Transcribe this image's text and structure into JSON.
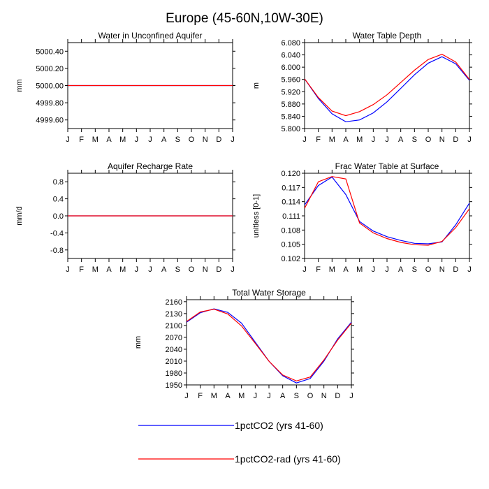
{
  "figure": {
    "title": "Europe (45-60N,10W-30E)"
  },
  "colors": {
    "series_1": "#0000ff",
    "series_2": "#ff0000",
    "axes": "#000000"
  },
  "legend": {
    "items": [
      {
        "label": "1pctCO2 (yrs 41-60)",
        "color": "#0000ff"
      },
      {
        "label": "1pctCO2-rad (yrs 41-60)",
        "color": "#ff0000"
      }
    ]
  },
  "chart_data": [
    {
      "type": "line",
      "title": "Water in Unconfined Aquifer",
      "ylabel": "mm",
      "x": [
        "J",
        "F",
        "M",
        "A",
        "M",
        "J",
        "J",
        "A",
        "S",
        "O",
        "N",
        "D",
        "J"
      ],
      "ylim": [
        4999.5,
        5000.5
      ],
      "yticks": [
        "5000.40",
        "5000.20",
        "5000.00",
        "4999.80",
        "4999.60"
      ],
      "ytick_values": [
        5000.4,
        5000.2,
        5000.0,
        4999.8,
        4999.6
      ],
      "series": [
        {
          "name": "1pctCO2 (yrs 41-60)",
          "values": [
            5000,
            5000,
            5000,
            5000,
            5000,
            5000,
            5000,
            5000,
            5000,
            5000,
            5000,
            5000,
            5000
          ]
        },
        {
          "name": "1pctCO2-rad (yrs 41-60)",
          "values": [
            5000,
            5000,
            5000,
            5000,
            5000,
            5000,
            5000,
            5000,
            5000,
            5000,
            5000,
            5000,
            5000
          ]
        }
      ]
    },
    {
      "type": "line",
      "title": "Water Table Depth",
      "ylabel": "m",
      "x": [
        "J",
        "F",
        "M",
        "A",
        "M",
        "J",
        "J",
        "A",
        "S",
        "O",
        "N",
        "D",
        "J"
      ],
      "ylim": [
        5.8,
        6.08
      ],
      "yticks": [
        "6.080",
        "6.040",
        "6.000",
        "5.960",
        "5.920",
        "5.880",
        "5.840",
        "5.800"
      ],
      "ytick_values": [
        6.08,
        6.04,
        6.0,
        5.96,
        5.92,
        5.88,
        5.84,
        5.8
      ],
      "series": [
        {
          "name": "1pctCO2 (yrs 41-60)",
          "values": [
            5.962,
            5.898,
            5.848,
            5.822,
            5.828,
            5.851,
            5.887,
            5.931,
            5.975,
            6.013,
            6.034,
            6.011,
            5.957
          ]
        },
        {
          "name": "1pctCO2-rad (yrs 41-60)",
          "values": [
            5.962,
            5.901,
            5.857,
            5.842,
            5.855,
            5.878,
            5.91,
            5.95,
            5.99,
            6.025,
            6.042,
            6.017,
            5.96
          ]
        }
      ]
    },
    {
      "type": "line",
      "title": "Aquifer Recharge Rate",
      "ylabel": "mm/d",
      "x": [
        "J",
        "F",
        "M",
        "A",
        "M",
        "J",
        "J",
        "A",
        "S",
        "O",
        "N",
        "D",
        "J"
      ],
      "ylim": [
        -1.0,
        1.0
      ],
      "yticks": [
        "0.8",
        "0.4",
        "0.0",
        "-0.4",
        "-0.8"
      ],
      "ytick_values": [
        0.8,
        0.4,
        0.0,
        -0.4,
        -0.8
      ],
      "series": [
        {
          "name": "1pctCO2 (yrs 41-60)",
          "values": [
            0,
            0,
            0,
            0,
            0,
            0,
            0,
            0,
            0,
            0,
            0,
            0,
            0
          ]
        },
        {
          "name": "1pctCO2-rad (yrs 41-60)",
          "values": [
            0,
            0,
            0,
            0,
            0,
            0,
            0,
            0,
            0,
            0,
            0,
            0,
            0
          ]
        }
      ]
    },
    {
      "type": "line",
      "title": "Frac Water Table at Surface",
      "ylabel": "unitless [0-1]",
      "x": [
        "J",
        "F",
        "M",
        "A",
        "M",
        "J",
        "J",
        "A",
        "S",
        "O",
        "N",
        "D",
        "J"
      ],
      "ylim": [
        0.102,
        0.12
      ],
      "yticks": [
        "0.120",
        "0.117",
        "0.114",
        "0.111",
        "0.108",
        "0.105",
        "0.102"
      ],
      "ytick_values": [
        0.12,
        0.117,
        0.114,
        0.111,
        0.108,
        0.105,
        0.102
      ],
      "series": [
        {
          "name": "1pctCO2 (yrs 41-60)",
          "values": [
            0.1133,
            0.1174,
            0.1192,
            0.1155,
            0.1098,
            0.1078,
            0.1066,
            0.1058,
            0.1052,
            0.1051,
            0.1055,
            0.1091,
            0.1137
          ]
        },
        {
          "name": "1pctCO2-rad (yrs 41-60)",
          "values": [
            0.1126,
            0.1182,
            0.1193,
            0.1188,
            0.1095,
            0.1074,
            0.1062,
            0.1054,
            0.1049,
            0.1048,
            0.1056,
            0.1085,
            0.1125
          ]
        }
      ]
    },
    {
      "type": "line",
      "title": "Total Water Storage",
      "ylabel": "mm",
      "x": [
        "J",
        "F",
        "M",
        "A",
        "M",
        "J",
        "J",
        "A",
        "S",
        "O",
        "N",
        "D",
        "J"
      ],
      "ylim": [
        1950,
        2165
      ],
      "yticks": [
        "2160",
        "2130",
        "2100",
        "2070",
        "2040",
        "2010",
        "1980",
        "1950"
      ],
      "ytick_values": [
        2160,
        2130,
        2100,
        2070,
        2040,
        2010,
        1980,
        1950
      ],
      "series": [
        {
          "name": "1pctCO2 (yrs 41-60)",
          "values": [
            2108,
            2132,
            2142,
            2133,
            2106,
            2058,
            2010,
            1973,
            1955,
            1966,
            2010,
            2066,
            2108
          ]
        },
        {
          "name": "1pctCO2-rad (yrs 41-60)",
          "values": [
            2110,
            2134,
            2141,
            2129,
            2099,
            2055,
            2010,
            1975,
            1960,
            1970,
            2013,
            2063,
            2106
          ]
        }
      ]
    }
  ]
}
